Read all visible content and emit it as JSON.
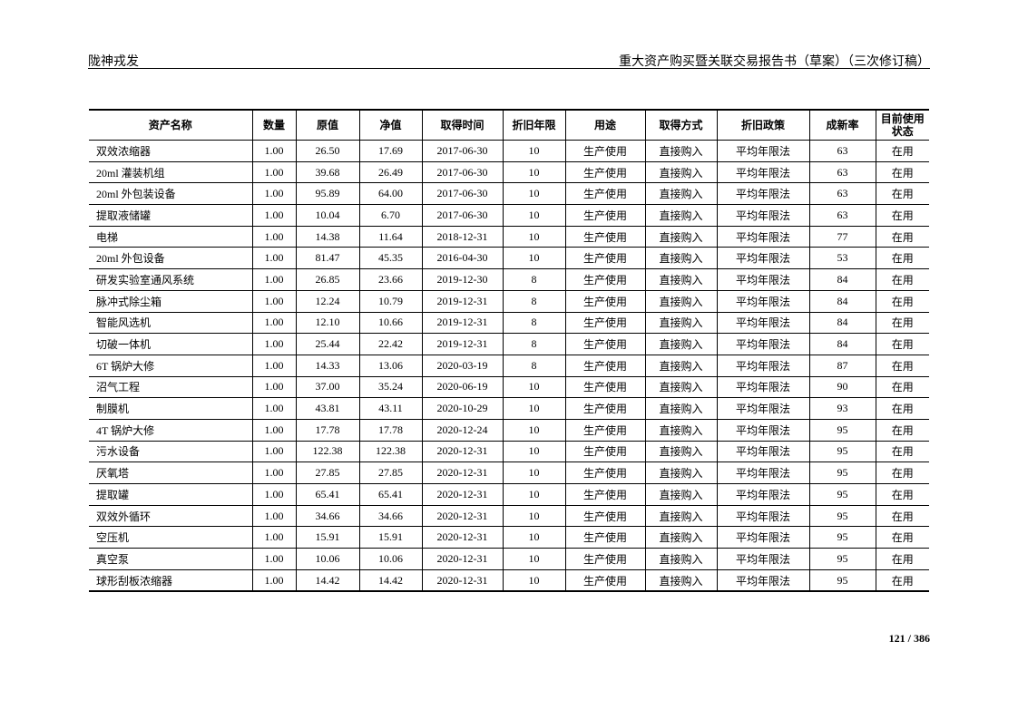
{
  "header": {
    "company": "陇神戎发",
    "doc_title": "重大资产购买暨关联交易报告书（草案）（三次修订稿）"
  },
  "table": {
    "columns": [
      "资产名称",
      "数量",
      "原值",
      "净值",
      "取得时间",
      "折旧年限",
      "用途",
      "取得方式",
      "折旧政策",
      "成新率",
      "目前使用状态"
    ],
    "rows": [
      [
        "双效浓缩器",
        "1.00",
        "26.50",
        "17.69",
        "2017-06-30",
        "10",
        "生产使用",
        "直接购入",
        "平均年限法",
        "63",
        "在用"
      ],
      [
        "20ml 灌装机组",
        "1.00",
        "39.68",
        "26.49",
        "2017-06-30",
        "10",
        "生产使用",
        "直接购入",
        "平均年限法",
        "63",
        "在用"
      ],
      [
        "20ml 外包装设备",
        "1.00",
        "95.89",
        "64.00",
        "2017-06-30",
        "10",
        "生产使用",
        "直接购入",
        "平均年限法",
        "63",
        "在用"
      ],
      [
        "提取液储罐",
        "1.00",
        "10.04",
        "6.70",
        "2017-06-30",
        "10",
        "生产使用",
        "直接购入",
        "平均年限法",
        "63",
        "在用"
      ],
      [
        "电梯",
        "1.00",
        "14.38",
        "11.64",
        "2018-12-31",
        "10",
        "生产使用",
        "直接购入",
        "平均年限法",
        "77",
        "在用"
      ],
      [
        "20ml 外包设备",
        "1.00",
        "81.47",
        "45.35",
        "2016-04-30",
        "10",
        "生产使用",
        "直接购入",
        "平均年限法",
        "53",
        "在用"
      ],
      [
        "研发实验室通风系统",
        "1.00",
        "26.85",
        "23.66",
        "2019-12-30",
        "8",
        "生产使用",
        "直接购入",
        "平均年限法",
        "84",
        "在用"
      ],
      [
        "脉冲式除尘箱",
        "1.00",
        "12.24",
        "10.79",
        "2019-12-31",
        "8",
        "生产使用",
        "直接购入",
        "平均年限法",
        "84",
        "在用"
      ],
      [
        "智能风选机",
        "1.00",
        "12.10",
        "10.66",
        "2019-12-31",
        "8",
        "生产使用",
        "直接购入",
        "平均年限法",
        "84",
        "在用"
      ],
      [
        "切破一体机",
        "1.00",
        "25.44",
        "22.42",
        "2019-12-31",
        "8",
        "生产使用",
        "直接购入",
        "平均年限法",
        "84",
        "在用"
      ],
      [
        "6T 锅炉大修",
        "1.00",
        "14.33",
        "13.06",
        "2020-03-19",
        "8",
        "生产使用",
        "直接购入",
        "平均年限法",
        "87",
        "在用"
      ],
      [
        "沼气工程",
        "1.00",
        "37.00",
        "35.24",
        "2020-06-19",
        "10",
        "生产使用",
        "直接购入",
        "平均年限法",
        "90",
        "在用"
      ],
      [
        "制膜机",
        "1.00",
        "43.81",
        "43.11",
        "2020-10-29",
        "10",
        "生产使用",
        "直接购入",
        "平均年限法",
        "93",
        "在用"
      ],
      [
        "4T 锅炉大修",
        "1.00",
        "17.78",
        "17.78",
        "2020-12-24",
        "10",
        "生产使用",
        "直接购入",
        "平均年限法",
        "95",
        "在用"
      ],
      [
        "污水设备",
        "1.00",
        "122.38",
        "122.38",
        "2020-12-31",
        "10",
        "生产使用",
        "直接购入",
        "平均年限法",
        "95",
        "在用"
      ],
      [
        "厌氧塔",
        "1.00",
        "27.85",
        "27.85",
        "2020-12-31",
        "10",
        "生产使用",
        "直接购入",
        "平均年限法",
        "95",
        "在用"
      ],
      [
        "提取罐",
        "1.00",
        "65.41",
        "65.41",
        "2020-12-31",
        "10",
        "生产使用",
        "直接购入",
        "平均年限法",
        "95",
        "在用"
      ],
      [
        "双效外循环",
        "1.00",
        "34.66",
        "34.66",
        "2020-12-31",
        "10",
        "生产使用",
        "直接购入",
        "平均年限法",
        "95",
        "在用"
      ],
      [
        "空压机",
        "1.00",
        "15.91",
        "15.91",
        "2020-12-31",
        "10",
        "生产使用",
        "直接购入",
        "平均年限法",
        "95",
        "在用"
      ],
      [
        "真空泵",
        "1.00",
        "10.06",
        "10.06",
        "2020-12-31",
        "10",
        "生产使用",
        "直接购入",
        "平均年限法",
        "95",
        "在用"
      ],
      [
        "球形刮板浓缩器",
        "1.00",
        "14.42",
        "14.42",
        "2020-12-31",
        "10",
        "生产使用",
        "直接购入",
        "平均年限法",
        "95",
        "在用"
      ]
    ]
  },
  "footer": {
    "page": "121 / 386"
  }
}
